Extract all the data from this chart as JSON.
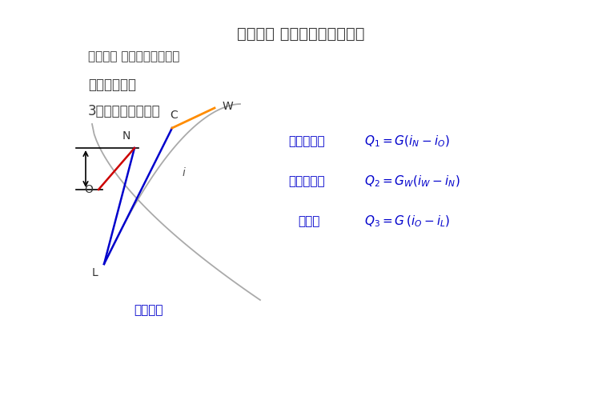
{
  "title1": "第一章： 空调末端分类及选型",
  "title2": "第四节： 组合式空调笱选型",
  "title3": "四、设计选型",
  "title4": "3、表冷器部分选型",
  "caption": "夏季工况",
  "q1_label": "室内冷负荷",
  "q2_label": "新风冷负荷",
  "q3_label": "再热量",
  "bg_color": "#ffffff",
  "text_color_dark": "#3a3a3a",
  "text_color_blue": "#0000cc",
  "text_color_formula": "#1a1a6e"
}
